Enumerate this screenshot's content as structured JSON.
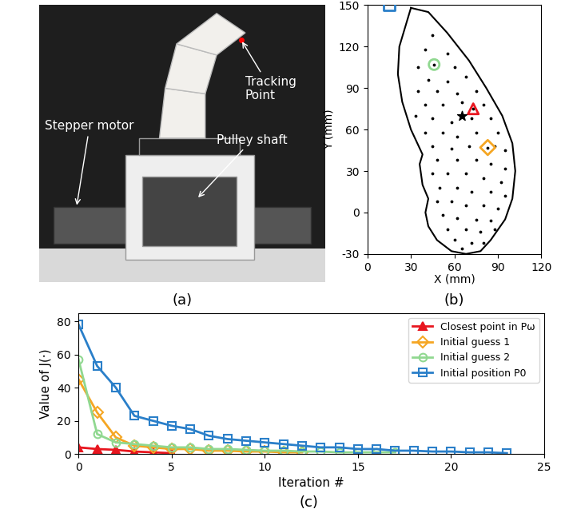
{
  "photo_panel": {
    "caption": "(a)",
    "labels": [
      "Tracking\nPoint",
      "Stepper motor",
      "Pulley shaft"
    ]
  },
  "chart_data": [
    {
      "type": "scatter",
      "caption": "(b)",
      "x_label": "X (mm)",
      "y_label": "Y (mm)",
      "xlim": [
        0,
        120
      ],
      "xticks": [
        0,
        30,
        60,
        90,
        120
      ],
      "ylim": [
        -30,
        150
      ],
      "yticks": [
        -30,
        0,
        30,
        60,
        90,
        120,
        150
      ],
      "grid": false,
      "boundary": {
        "color": "#000000",
        "x": [
          30,
          22,
          21,
          24,
          30,
          38,
          36,
          38,
          42,
          40,
          42,
          48,
          58,
          68,
          78,
          85,
          95,
          100,
          102,
          100,
          93,
          82,
          70,
          55,
          42,
          30
        ],
        "y": [
          148,
          120,
          100,
          80,
          60,
          42,
          35,
          20,
          10,
          0,
          -10,
          -20,
          -28,
          -30,
          -28,
          -20,
          -5,
          10,
          30,
          50,
          70,
          90,
          110,
          130,
          145,
          148
        ]
      },
      "points": {
        "color": "#000000",
        "marker": "dot",
        "x": [
          45,
          40,
          55,
          35,
          60,
          42,
          55,
          68,
          35,
          48,
          62,
          75,
          40,
          52,
          65,
          80,
          33,
          45,
          58,
          72,
          85,
          40,
          52,
          62,
          75,
          90,
          45,
          58,
          70,
          88,
          95,
          48,
          62,
          75,
          85,
          95,
          45,
          55,
          68,
          80,
          92,
          50,
          62,
          72,
          85,
          95,
          48,
          58,
          68,
          80,
          90,
          52,
          62,
          75,
          85,
          55,
          68,
          78,
          88,
          60,
          72,
          80,
          65,
          46,
          83,
          73
        ],
        "y": [
          128,
          118,
          115,
          105,
          105,
          96,
          95,
          98,
          88,
          88,
          86,
          88,
          78,
          78,
          80,
          78,
          70,
          68,
          65,
          68,
          68,
          58,
          58,
          55,
          58,
          58,
          48,
          46,
          48,
          48,
          45,
          38,
          38,
          38,
          35,
          32,
          28,
          28,
          28,
          25,
          22,
          18,
          18,
          15,
          15,
          12,
          8,
          8,
          5,
          5,
          3,
          -2,
          -4,
          -5,
          -6,
          -12,
          -12,
          -14,
          -12,
          -20,
          -22,
          -22,
          -26,
          107,
          47,
          75
        ]
      },
      "markers": [
        {
          "x": 73,
          "y": 75,
          "color": "#e8161f",
          "marker": "triangle"
        },
        {
          "x": 83,
          "y": 47,
          "color": "#f5a623",
          "marker": "diamond"
        },
        {
          "x": 46,
          "y": 107,
          "color": "#90d890",
          "marker": "circle"
        },
        {
          "x": 15,
          "y": 150,
          "color": "#2a7fc9",
          "marker": "square"
        },
        {
          "x": 65,
          "y": 70,
          "color": "#000000",
          "marker": "asterisk"
        }
      ]
    },
    {
      "type": "line",
      "caption": "(c)",
      "x_label": "Iteration #",
      "y_label": "Value of J(·)",
      "xlim": [
        0,
        25
      ],
      "xticks": [
        0,
        5,
        10,
        15,
        20,
        25
      ],
      "ylim": [
        0,
        85
      ],
      "yticks": [
        0,
        20,
        40,
        60,
        80
      ],
      "grid": false,
      "legend": "upper right",
      "series": [
        {
          "name": "Closest point in Pω",
          "color": "#e8161f",
          "marker": "triangle",
          "x": [
            0,
            1,
            2,
            3,
            4,
            5
          ],
          "values": [
            4,
            3,
            2.5,
            1.5,
            1,
            0.5
          ]
        },
        {
          "name": "Initial guess 1",
          "color": "#f5a623",
          "marker": "diamond",
          "x": [
            0,
            1,
            2,
            3,
            4,
            5,
            6,
            7,
            8,
            9,
            10,
            11,
            12
          ],
          "values": [
            45,
            25,
            10,
            5,
            4,
            3,
            3,
            2,
            2,
            1.5,
            1.5,
            1,
            1
          ]
        },
        {
          "name": "Initial guess 2",
          "color": "#90d890",
          "marker": "circle",
          "x": [
            0,
            1,
            2,
            3,
            4,
            5,
            6,
            7,
            8,
            9,
            10,
            11,
            12,
            13,
            14,
            15,
            16,
            17
          ],
          "values": [
            57,
            12,
            7,
            6,
            5,
            4,
            4,
            3,
            3,
            2.5,
            2,
            2,
            1.5,
            1.5,
            1,
            1,
            1,
            1
          ]
        },
        {
          "name": "Initial position P0",
          "color": "#2a7fc9",
          "marker": "square",
          "x": [
            0,
            1,
            2,
            3,
            4,
            5,
            6,
            7,
            8,
            9,
            10,
            11,
            12,
            13,
            14,
            15,
            16,
            17,
            18,
            19,
            20,
            21,
            22,
            23
          ],
          "values": [
            78,
            53,
            40,
            23,
            20,
            17,
            15,
            11,
            9,
            8,
            7,
            6,
            5,
            4,
            4,
            3,
            3,
            2,
            2,
            1.5,
            1.5,
            1,
            1,
            0.5
          ]
        }
      ]
    }
  ]
}
